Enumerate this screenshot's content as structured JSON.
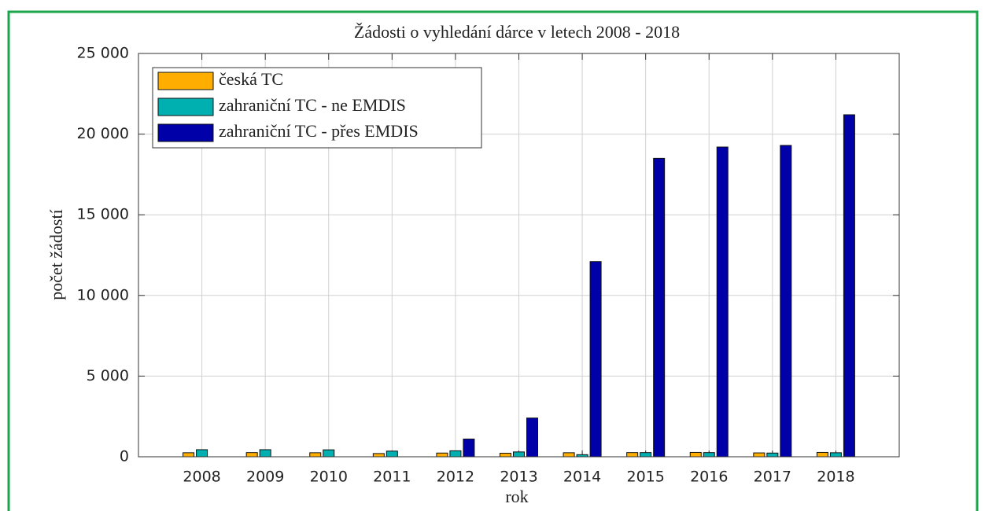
{
  "chart_data": {
    "type": "bar",
    "title": "Žádosti o vyhledání dárce v letech 2008 - 2018",
    "x_label": "rok",
    "y_label": "počet žádostí",
    "categories": [
      "2008",
      "2009",
      "2010",
      "2011",
      "2012",
      "2013",
      "2014",
      "2015",
      "2016",
      "2017",
      "2018"
    ],
    "series": [
      {
        "name": "česká TC",
        "color": "#ffae00",
        "values": [
          250,
          260,
          250,
          200,
          230,
          220,
          250,
          260,
          270,
          240,
          270
        ]
      },
      {
        "name": "zahraniční TC - ne EMDIS",
        "color": "#00b0b0",
        "values": [
          440,
          440,
          430,
          350,
          370,
          300,
          130,
          260,
          260,
          230,
          250
        ]
      },
      {
        "name": "zahraniční TC - přes EMDIS",
        "color": "#0000a8",
        "values": [
          0,
          0,
          0,
          0,
          1100,
          2400,
          12100,
          18500,
          19200,
          19300,
          21200
        ]
      }
    ],
    "ylim": [
      0,
      25000
    ],
    "yticks": [
      0,
      {
        "value": 5000,
        "label": "5 000"
      },
      {
        "value": 10000,
        "label": "10 000"
      },
      {
        "value": 15000,
        "label": "15 000"
      },
      {
        "value": 20000,
        "label": "20 000"
      },
      {
        "value": 25000,
        "label": "25 000"
      }
    ],
    "grid": true,
    "legend": "upper left"
  }
}
